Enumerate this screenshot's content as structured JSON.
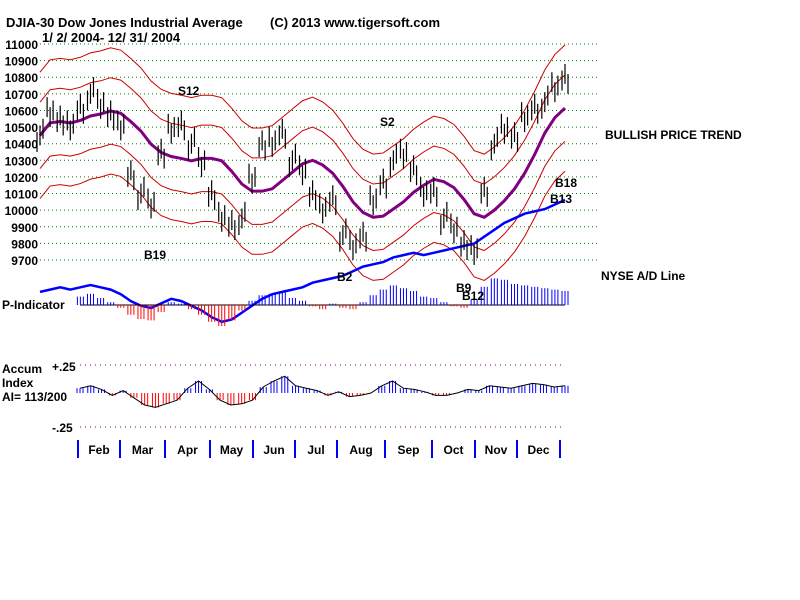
{
  "chart_data": {
    "type": "line",
    "title": "DJIA-30  Dow Jones Industrial Average",
    "copyright": "(C) 2013 www.tigersoft.com",
    "date_range": "1/ 2/ 2004- 12/ 31/ 2004",
    "ylim": [
      9700,
      11000
    ],
    "yticks": [
      "11000",
      "10900",
      "10800",
      "10700",
      "10600",
      "10500",
      "10400",
      "10300",
      "10200",
      "10100",
      "10000",
      "9900",
      "9800",
      "9700"
    ],
    "months": [
      "Feb",
      "Mar",
      "Apr",
      "May",
      "Jun",
      "Jul",
      "Aug",
      "Sep",
      "Oct",
      "Nov",
      "Dec"
    ],
    "weekly_close": [
      10450,
      10600,
      10550,
      10500,
      10600,
      10700,
      10650,
      10580,
      10500,
      10200,
      10100,
      10050,
      10350,
      10480,
      10500,
      10400,
      10300,
      10100,
      9950,
      9900,
      9950,
      10200,
      10400,
      10400,
      10450,
      10300,
      10250,
      10100,
      10000,
      10050,
      9850,
      9800,
      9850,
      10050,
      10150,
      10300,
      10350,
      10250,
      10100,
      10100,
      9950,
      9900,
      9800,
      9750,
      10100,
      10400,
      10500,
      10450,
      10550,
      10600,
      10650,
      10750,
      10800
    ],
    "ad_line": [
      -3,
      -2,
      -1,
      -2,
      -1,
      0,
      -1,
      -2,
      -4,
      -7,
      -9,
      -10,
      -8,
      -6,
      -7,
      -9,
      -11,
      -14,
      -16,
      -15,
      -12,
      -9,
      -6,
      -4,
      -3,
      -2,
      -1,
      1,
      2,
      3,
      4,
      6,
      8,
      9,
      10,
      12,
      13,
      14,
      13,
      14,
      15,
      16,
      17,
      18,
      21,
      24,
      27,
      29,
      31,
      32,
      33,
      35,
      37
    ],
    "p_indicator": [
      10,
      14,
      8,
      6,
      12,
      16,
      10,
      4,
      -4,
      -14,
      -20,
      -22,
      -10,
      4,
      2,
      -6,
      -14,
      -24,
      -30,
      -22,
      -8,
      6,
      14,
      16,
      18,
      10,
      6,
      -2,
      -6,
      2,
      -4,
      -6,
      4,
      14,
      22,
      28,
      24,
      20,
      12,
      10,
      4,
      -2,
      -4,
      8,
      26,
      38,
      36,
      30,
      28,
      26,
      24,
      22,
      20
    ],
    "accum_index": [
      0.04,
      0.06,
      0.03,
      -0.02,
      0.02,
      -0.04,
      -0.1,
      -0.12,
      -0.09,
      -0.06,
      0.04,
      0.1,
      0.03,
      -0.06,
      -0.1,
      -0.09,
      -0.06,
      0.05,
      0.1,
      0.14,
      0.06,
      0.04,
      0.02,
      -0.02,
      0.01,
      -0.03,
      -0.02,
      0.0,
      0.06,
      0.1,
      0.04,
      0.03,
      0.01,
      -0.02,
      -0.02,
      0.0,
      0.03,
      0.02,
      0.06,
      0.05,
      0.04,
      0.06,
      0.08,
      0.07,
      0.05,
      0.06
    ]
  },
  "signals": {
    "s12": "S12",
    "s2": "S2",
    "b19": "B19",
    "b2": "B2",
    "b9": "B9",
    "b12": "B12",
    "b18": "B18",
    "b13": "B13"
  },
  "labels": {
    "trend": "BULLISH PRICE TREND",
    "ad": "NYSE A/D Line",
    "pind": "P-Indicator",
    "accum1": "Accum",
    "accum2": "Index",
    "ai": "AI= 113/200",
    "plus": "+.25",
    "minus": "-.25"
  },
  "colors": {
    "grid": "#008000",
    "band": "#cc0000",
    "ma": "#800080",
    "ad": "#0000ff",
    "up": "#0000ff",
    "down": "#ff0000"
  }
}
